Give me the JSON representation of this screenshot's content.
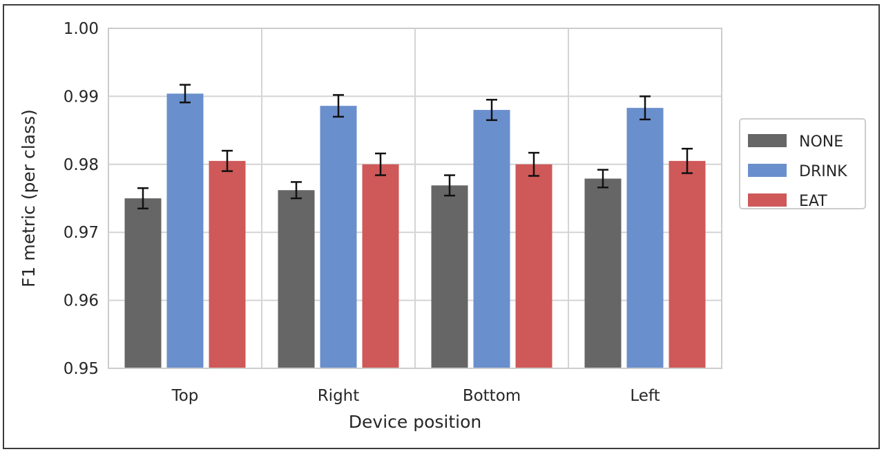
{
  "chart_data": {
    "type": "bar",
    "title": "",
    "xlabel": "Device position",
    "ylabel": "F1 metric (per class)",
    "categories": [
      "Top",
      "Right",
      "Bottom",
      "Left"
    ],
    "ylim": [
      0.95,
      1.0
    ],
    "yticks": [
      "0.95",
      "0.96",
      "0.97",
      "0.98",
      "0.99",
      "1.00"
    ],
    "grid": true,
    "legend_position": "right",
    "series": [
      {
        "name": "NONE",
        "color": "#666666",
        "values": [
          0.975,
          0.9762,
          0.9769,
          0.9779
        ],
        "errors": [
          0.0015,
          0.0012,
          0.0015,
          0.0013
        ]
      },
      {
        "name": "DRINK",
        "color": "#6a8fcd",
        "values": [
          0.9904,
          0.9886,
          0.988,
          0.9883
        ],
        "errors": [
          0.0013,
          0.0016,
          0.0015,
          0.0017
        ]
      },
      {
        "name": "EAT",
        "color": "#cf5858",
        "values": [
          0.9805,
          0.98,
          0.98,
          0.9805
        ],
        "errors": [
          0.0015,
          0.0016,
          0.0017,
          0.0018
        ]
      }
    ]
  }
}
